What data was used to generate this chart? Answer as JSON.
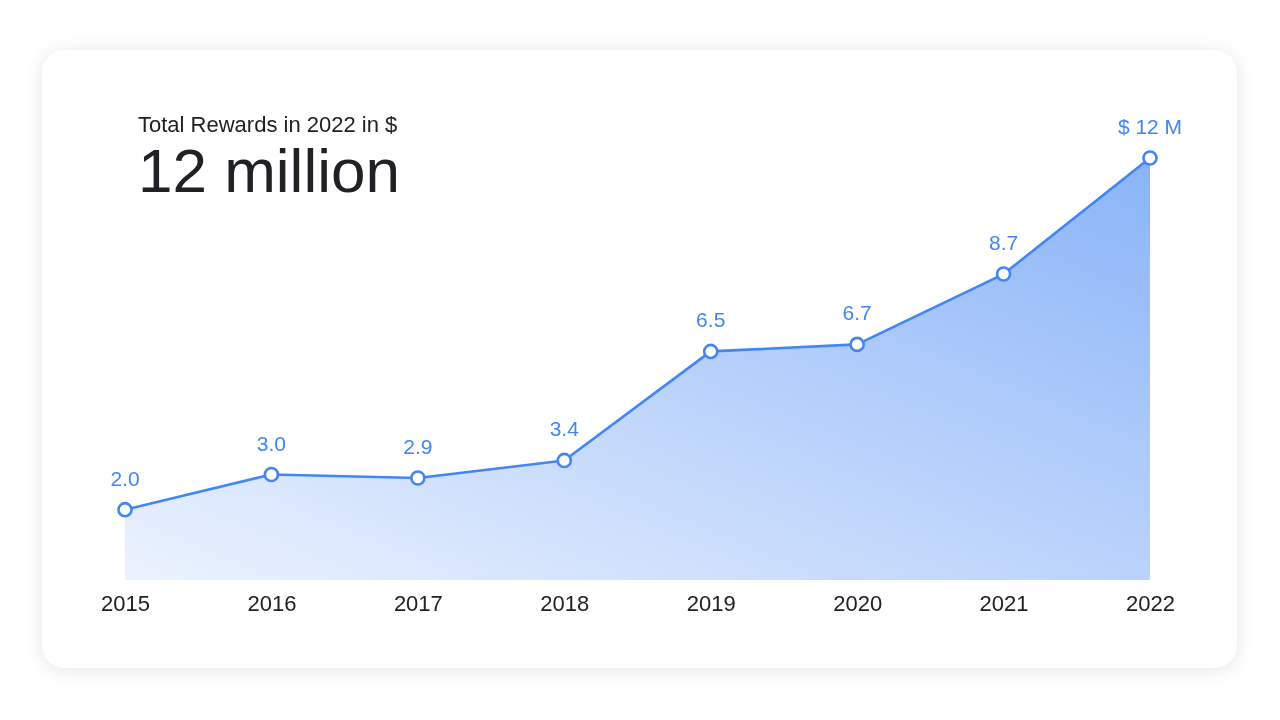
{
  "chart_data": {
    "type": "area",
    "title": "Total Rewards in 2022 in $",
    "subtitle": "12 million",
    "categories": [
      "2015",
      "2016",
      "2017",
      "2018",
      "2019",
      "2020",
      "2021",
      "2022"
    ],
    "values": [
      2.0,
      3.0,
      2.9,
      3.4,
      6.5,
      6.7,
      8.7,
      12
    ],
    "value_labels": [
      "2.0",
      "3.0",
      "2.9",
      "3.4",
      "6.5",
      "6.7",
      "8.7",
      "$ 12 M"
    ],
    "color": "#4285f4",
    "marker": "circle",
    "tick_labels": "x"
  }
}
